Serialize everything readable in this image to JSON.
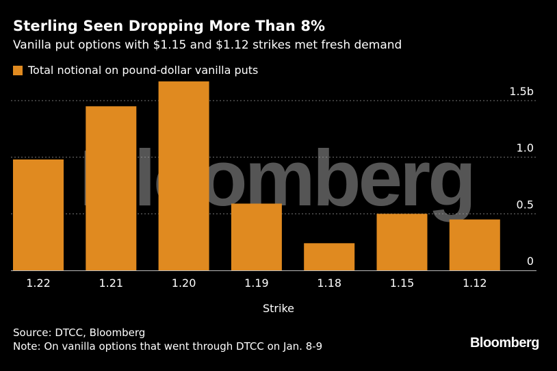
{
  "header": {
    "title": "Sterling Seen Dropping More Than 8%",
    "subtitle": "Vanilla put options with $1.15 and $1.12 strikes met fresh demand"
  },
  "legend": {
    "label": "Total notional on pound-dollar vanilla puts"
  },
  "footer": {
    "source": "Source: DTCC, Bloomberg",
    "note": "Note: On vanilla options that went through DTCC on Jan. 8-9",
    "brand": "Bloomberg"
  },
  "watermark": "Bloomberg",
  "colors": {
    "bar": "#e08a20",
    "background": "#000000",
    "grid": "#777777",
    "text": "#ffffff"
  },
  "chart_data": {
    "type": "bar",
    "title": "Sterling Seen Dropping More Than 8%",
    "subtitle": "Vanilla put options with $1.15 and $1.12 strikes met fresh demand",
    "xlabel": "Strike",
    "ylabel": "",
    "categories": [
      "1.22",
      "1.21",
      "1.20",
      "1.19",
      "1.18",
      "1.15",
      "1.12"
    ],
    "series": [
      {
        "name": "Total notional on pound-dollar vanilla puts",
        "values": [
          0.98,
          1.45,
          1.67,
          0.59,
          0.24,
          0.5,
          0.45
        ]
      }
    ],
    "ylim": [
      0,
      1.5
    ],
    "yticks": [
      0,
      0.5,
      1.0,
      1.5
    ],
    "ytick_labels": [
      "0",
      "0.5",
      "1.0",
      "1.5b"
    ],
    "y_axis_side": "right",
    "grid": true,
    "legend_position": "top-left"
  }
}
